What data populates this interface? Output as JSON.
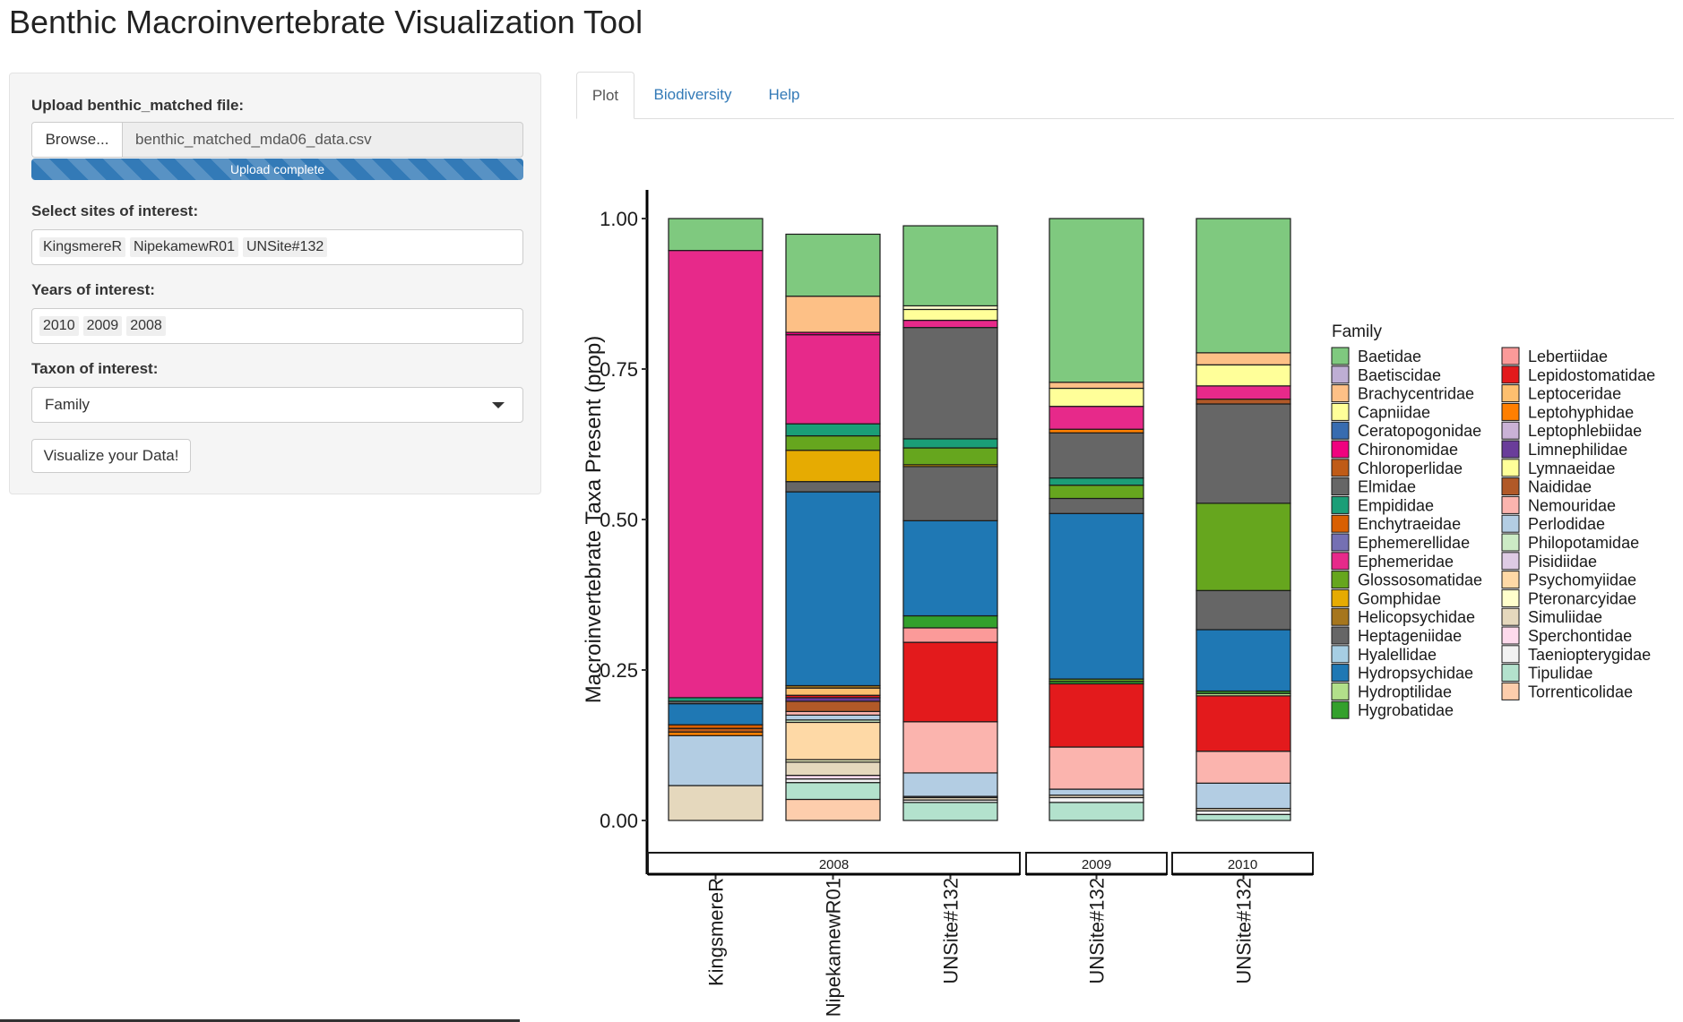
{
  "app": {
    "title": "Benthic Macroinvertebrate Visualization Tool"
  },
  "sidebar": {
    "upload": {
      "label": "Upload benthic_matched file:",
      "browse_label": "Browse...",
      "file_name": "benthic_matched_mda06_data.csv",
      "progress_text": "Upload complete",
      "progress": 1.0
    },
    "sites": {
      "label": "Select sites of interest:",
      "selected": [
        "KingsmereR",
        "NipekamewR01",
        "UNSite#132"
      ]
    },
    "years": {
      "label": "Years of interest:",
      "selected": [
        "2010",
        "2009",
        "2008"
      ]
    },
    "taxon": {
      "label": "Taxon of interest:",
      "value": "Family"
    },
    "visualize_label": "Visualize your Data!"
  },
  "tabs": [
    {
      "label": "Plot",
      "active": true
    },
    {
      "label": "Biodiversity",
      "active": false
    },
    {
      "label": "Help",
      "active": false
    }
  ],
  "chart_data": {
    "type": "bar",
    "stacked": true,
    "ylabel": "Macroinvertebrate Taxa Present (prop)",
    "xlabel": "",
    "ylim": [
      0,
      1
    ],
    "yticks": [
      "0.00",
      "0.25",
      "0.50",
      "0.75",
      "1.00"
    ],
    "legend_title": "Family",
    "legend_position": "right",
    "facets": [
      "2008",
      "2009",
      "2010"
    ],
    "bars": [
      {
        "facet": "2008",
        "site": "KingsmereR",
        "segments": [
          {
            "family": "Simuliidae",
            "value": 0.058
          },
          {
            "family": "Perlodidae",
            "value": 0.083
          },
          {
            "family": "Leptohyphidae",
            "value": 0.006
          },
          {
            "family": "Chloroperlidae",
            "value": 0.006
          },
          {
            "family": "Enchytraeidae",
            "value": 0.006
          },
          {
            "family": "Hydropsychidae",
            "value": 0.035
          },
          {
            "family": "Heptageniidae",
            "value": 0.004
          },
          {
            "family": "Empididae",
            "value": 0.006
          },
          {
            "family": "Ephemeridae",
            "value": 0.743
          },
          {
            "family": "Baetidae",
            "value": 0.053
          }
        ]
      },
      {
        "facet": "2008",
        "site": "NipekamewR01",
        "segments": [
          {
            "family": "Torrenticolidae",
            "value": 0.035
          },
          {
            "family": "Tipulidae",
            "value": 0.028
          },
          {
            "family": "Taeniopterygidae",
            "value": 0.006
          },
          {
            "family": "Sperchontidae",
            "value": 0.006
          },
          {
            "family": "Simuliidae",
            "value": 0.022
          },
          {
            "family": "Pteronarcyidae",
            "value": 0.004
          },
          {
            "family": "Psychomyiidae",
            "value": 0.062
          },
          {
            "family": "Philopotamidae",
            "value": 0.004
          },
          {
            "family": "Perlodidae",
            "value": 0.008
          },
          {
            "family": "Nemouridae",
            "value": 0.006
          },
          {
            "family": "Naididae",
            "value": 0.017
          },
          {
            "family": "Limnephilidae",
            "value": 0.006
          },
          {
            "family": "Lepidostomatidae",
            "value": 0.004
          },
          {
            "family": "Leptoceridae",
            "value": 0.012
          },
          {
            "family": "Helicopsychidae",
            "value": 0.004
          },
          {
            "family": "Hydropsychidae",
            "value": 0.322
          },
          {
            "family": "Heptageniidae",
            "value": 0.017
          },
          {
            "family": "Gomphidae",
            "value": 0.052
          },
          {
            "family": "Glossosomatidae",
            "value": 0.024
          },
          {
            "family": "Empididae",
            "value": 0.02
          },
          {
            "family": "Ephemeridae",
            "value": 0.148
          },
          {
            "family": "Chironomidae",
            "value": 0.004
          },
          {
            "family": "Brachycentridae",
            "value": 0.06
          },
          {
            "family": "Baetidae",
            "value": 0.103
          }
        ]
      },
      {
        "facet": "2008",
        "site": "UNSite#132",
        "segments": [
          {
            "family": "Tipulidae",
            "value": 0.03
          },
          {
            "family": "Taeniopterygidae",
            "value": 0.004
          },
          {
            "family": "Simuliidae",
            "value": 0.004
          },
          {
            "family": "Pisidiidae",
            "value": 0.002
          },
          {
            "family": "Perlodidae",
            "value": 0.039
          },
          {
            "family": "Nemouridae",
            "value": 0.085
          },
          {
            "family": "Lepidostomatidae",
            "value": 0.132
          },
          {
            "family": "Lebertiidae",
            "value": 0.024
          },
          {
            "family": "Hygrobatidae",
            "value": 0.02
          },
          {
            "family": "Hydropsychidae",
            "value": 0.158
          },
          {
            "family": "Heptageniidae",
            "value": 0.09
          },
          {
            "family": "Gomphidae",
            "value": 0.003
          },
          {
            "family": "Glossosomatidae",
            "value": 0.028
          },
          {
            "family": "Empididae",
            "value": 0.015
          },
          {
            "family": "Elmidae",
            "value": 0.185
          },
          {
            "family": "Ephemeridae",
            "value": 0.012
          },
          {
            "family": "Lymnaeidae",
            "value": 0.018
          },
          {
            "family": "Pteronarcyidae",
            "value": 0.006
          },
          {
            "family": "Baetidae",
            "value": 0.133
          }
        ]
      },
      {
        "facet": "2009",
        "site": "UNSite#132",
        "segments": [
          {
            "family": "Tipulidae",
            "value": 0.03
          },
          {
            "family": "Taeniopterygidae",
            "value": 0.008
          },
          {
            "family": "Simuliidae",
            "value": 0.004
          },
          {
            "family": "Perlodidae",
            "value": 0.01
          },
          {
            "family": "Nemouridae",
            "value": 0.07
          },
          {
            "family": "Lepidostomatidae",
            "value": 0.105
          },
          {
            "family": "Hygrobatidae",
            "value": 0.004
          },
          {
            "family": "Glossosomatidae",
            "value": 0.004
          },
          {
            "family": "Hydropsychidae",
            "value": 0.275
          },
          {
            "family": "Heptageniidae",
            "value": 0.025
          },
          {
            "family": "Glossosomatidae",
            "value": 0.022
          },
          {
            "family": "Empididae",
            "value": 0.012
          },
          {
            "family": "Elmidae",
            "value": 0.075
          },
          {
            "family": "Leptohyphidae",
            "value": 0.006
          },
          {
            "family": "Ephemeridae",
            "value": 0.038
          },
          {
            "family": "Lymnaeidae",
            "value": 0.03
          },
          {
            "family": "Brachycentridae",
            "value": 0.01
          },
          {
            "family": "Baetidae",
            "value": 0.272
          }
        ]
      },
      {
        "facet": "2010",
        "site": "UNSite#132",
        "segments": [
          {
            "family": "Tipulidae",
            "value": 0.01
          },
          {
            "family": "Taeniopterygidae",
            "value": 0.006
          },
          {
            "family": "Simuliidae",
            "value": 0.004
          },
          {
            "family": "Perlodidae",
            "value": 0.042
          },
          {
            "family": "Nemouridae",
            "value": 0.053
          },
          {
            "family": "Lepidostomatidae",
            "value": 0.092
          },
          {
            "family": "Hydroptilidae",
            "value": 0.004
          },
          {
            "family": "Hygrobatidae",
            "value": 0.004
          },
          {
            "family": "Hydropsychidae",
            "value": 0.102
          },
          {
            "family": "Heptageniidae",
            "value": 0.065
          },
          {
            "family": "Glossosomatidae",
            "value": 0.145
          },
          {
            "family": "Elmidae",
            "value": 0.165
          },
          {
            "family": "Naididae",
            "value": 0.008
          },
          {
            "family": "Ephemeridae",
            "value": 0.022
          },
          {
            "family": "Lymnaeidae",
            "value": 0.035
          },
          {
            "family": "Brachycentridae",
            "value": 0.02
          },
          {
            "family": "Baetidae",
            "value": 0.223
          }
        ]
      }
    ],
    "legend": [
      {
        "name": "Baetidae",
        "color": "#7fc97f"
      },
      {
        "name": "Baetiscidae",
        "color": "#beaed4"
      },
      {
        "name": "Brachycentridae",
        "color": "#fdc086"
      },
      {
        "name": "Capniidae",
        "color": "#ffff99"
      },
      {
        "name": "Ceratopogonidae",
        "color": "#386cb0"
      },
      {
        "name": "Chironomidae",
        "color": "#f0027f"
      },
      {
        "name": "Chloroperlidae",
        "color": "#bf5b17"
      },
      {
        "name": "Elmidae",
        "color": "#666666"
      },
      {
        "name": "Empididae",
        "color": "#1b9e77"
      },
      {
        "name": "Enchytraeidae",
        "color": "#d95f02"
      },
      {
        "name": "Ephemerellidae",
        "color": "#7570b3"
      },
      {
        "name": "Ephemeridae",
        "color": "#e7298a"
      },
      {
        "name": "Glossosomatidae",
        "color": "#66a61e"
      },
      {
        "name": "Gomphidae",
        "color": "#e6ab02"
      },
      {
        "name": "Helicopsychidae",
        "color": "#a6761d"
      },
      {
        "name": "Heptageniidae",
        "color": "#666666"
      },
      {
        "name": "Hyalellidae",
        "color": "#a6cee3"
      },
      {
        "name": "Hydropsychidae",
        "color": "#1f78b4"
      },
      {
        "name": "Hydroptilidae",
        "color": "#b2df8a"
      },
      {
        "name": "Hygrobatidae",
        "color": "#33a02c"
      },
      {
        "name": "Lebertiidae",
        "color": "#fb9a99"
      },
      {
        "name": "Lepidostomatidae",
        "color": "#e31a1c"
      },
      {
        "name": "Leptoceridae",
        "color": "#fdbf6f"
      },
      {
        "name": "Leptohyphidae",
        "color": "#ff7f00"
      },
      {
        "name": "Leptophlebiidae",
        "color": "#cab2d6"
      },
      {
        "name": "Limnephilidae",
        "color": "#6a3d9a"
      },
      {
        "name": "Lymnaeidae",
        "color": "#ffff99"
      },
      {
        "name": "Naididae",
        "color": "#b15928"
      },
      {
        "name": "Nemouridae",
        "color": "#fbb4ae"
      },
      {
        "name": "Perlodidae",
        "color": "#b3cde3"
      },
      {
        "name": "Philopotamidae",
        "color": "#ccebc5"
      },
      {
        "name": "Pisidiidae",
        "color": "#decbe4"
      },
      {
        "name": "Psychomyiidae",
        "color": "#fed9a6"
      },
      {
        "name": "Pteronarcyidae",
        "color": "#ffffcc"
      },
      {
        "name": "Simuliidae",
        "color": "#e5d8bd"
      },
      {
        "name": "Sperchontidae",
        "color": "#fddaec"
      },
      {
        "name": "Taeniopterygidae",
        "color": "#f2f2f2"
      },
      {
        "name": "Tipulidae",
        "color": "#b3e2cd"
      },
      {
        "name": "Torrenticolidae",
        "color": "#fdcdac"
      }
    ]
  }
}
